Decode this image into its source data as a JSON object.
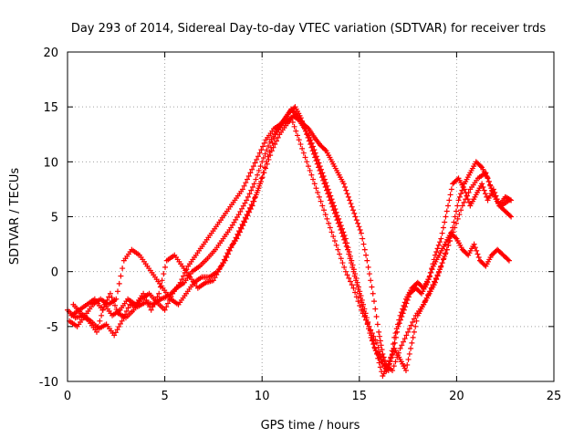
{
  "chart_data": {
    "type": "scatter",
    "title": "Day 293 of 2014, Sidereal Day-to-day VTEC variation (SDTVAR) for receiver trds",
    "xlabel": "GPS time / hours",
    "ylabel": "SDTVAR / TECUs",
    "xlim": [
      0,
      25
    ],
    "ylim": [
      -10,
      20
    ],
    "xticks": [
      0,
      5,
      10,
      15,
      20,
      25
    ],
    "yticks": [
      -10,
      -5,
      0,
      5,
      10,
      15,
      20
    ],
    "grid": true,
    "marker": "plus",
    "series_color": "#ff0000",
    "series": [
      {
        "name": "trace-1",
        "x": [
          0.0,
          0.4,
          0.8,
          1.2,
          1.6,
          2.0,
          2.4,
          2.8,
          3.2,
          3.6,
          4.0,
          4.4,
          4.8,
          5.2,
          5.6,
          6.0,
          6.4,
          6.8,
          7.2,
          7.6,
          8.0,
          8.4,
          8.8,
          9.2,
          9.6,
          10.0,
          10.4,
          10.8,
          11.2,
          11.5,
          11.8,
          12.1,
          12.4,
          12.7,
          13.0,
          13.3,
          13.6,
          13.9,
          14.2,
          14.5,
          14.8,
          15.1,
          15.4,
          15.7,
          16.0,
          16.2,
          16.5,
          16.8,
          17.1,
          17.4,
          17.7,
          18.0,
          18.3,
          18.6,
          18.9,
          19.2,
          19.5,
          19.8,
          20.1,
          20.4,
          20.7,
          21.0,
          21.3,
          21.6,
          21.9,
          22.2,
          22.5,
          22.8
        ],
        "y": [
          -3.5,
          -4.2,
          -4.0,
          -4.5,
          -5.2,
          -4.8,
          -5.8,
          -4.5,
          -3.0,
          -3.2,
          -2.8,
          -3.0,
          -2.5,
          -2.2,
          -1.5,
          -1.0,
          0.0,
          0.5,
          1.2,
          2.0,
          3.0,
          4.0,
          5.2,
          6.5,
          8.0,
          10.0,
          11.8,
          13.0,
          14.0,
          14.8,
          14.2,
          13.5,
          13.0,
          12.2,
          11.5,
          11.0,
          10.0,
          9.0,
          8.0,
          6.5,
          5.0,
          3.5,
          1.0,
          -2.0,
          -5.5,
          -7.5,
          -9.0,
          -6.0,
          -4.0,
          -2.5,
          -1.5,
          -1.0,
          -1.5,
          -0.5,
          1.5,
          3.0,
          5.5,
          8.0,
          8.5,
          7.5,
          6.0,
          7.0,
          8.0,
          6.5,
          7.5,
          6.0,
          6.8,
          6.5
        ]
      },
      {
        "name": "trace-2",
        "x": [
          0.2,
          0.6,
          1.0,
          1.4,
          1.8,
          2.2,
          2.6,
          3.0,
          3.4,
          3.8,
          4.2,
          4.6,
          5.0,
          5.4,
          5.8,
          6.2,
          6.6,
          7.0,
          7.4,
          7.8,
          8.2,
          8.6,
          9.0,
          9.4,
          9.8,
          10.2,
          10.6,
          11.0,
          11.4,
          11.7,
          12.0,
          12.3,
          12.6,
          12.9,
          13.2,
          13.5,
          13.8,
          14.1,
          14.4,
          14.7,
          15.0,
          15.3,
          15.6,
          15.9,
          16.2,
          16.5,
          16.8,
          17.1,
          17.4,
          17.7,
          18.0,
          18.3,
          18.6,
          18.9,
          19.2,
          19.5,
          19.8,
          20.1,
          20.4,
          20.7,
          21.0,
          21.3,
          21.6,
          21.9,
          22.2,
          22.5,
          22.8
        ],
        "y": [
          -4.0,
          -3.5,
          -3.0,
          -2.5,
          -3.5,
          -2.0,
          -3.8,
          -4.2,
          -3.5,
          -2.5,
          -2.0,
          -2.8,
          -3.5,
          -2.0,
          -1.0,
          0.5,
          1.5,
          2.5,
          3.5,
          4.5,
          5.5,
          6.5,
          7.5,
          9.0,
          10.5,
          12.0,
          13.0,
          13.5,
          14.5,
          15.0,
          14.0,
          12.5,
          11.0,
          9.5,
          8.0,
          6.5,
          5.0,
          3.5,
          2.0,
          0.0,
          -2.0,
          -4.0,
          -6.0,
          -7.5,
          -9.5,
          -8.5,
          -7.0,
          -8.0,
          -9.0,
          -6.5,
          -4.0,
          -3.0,
          -2.0,
          -1.0,
          0.5,
          2.0,
          4.0,
          6.5,
          8.0,
          9.0,
          10.0,
          9.5,
          8.5,
          7.0,
          6.0,
          5.5,
          5.0
        ]
      },
      {
        "name": "trace-3",
        "x": [
          0.1,
          0.5,
          0.9,
          1.3,
          1.7,
          2.1,
          2.5,
          2.9,
          3.3,
          3.7,
          4.1,
          4.5,
          4.9,
          5.3,
          5.7,
          6.1,
          6.5,
          6.9,
          7.3,
          7.7,
          8.1,
          8.5,
          8.9,
          9.3,
          9.7,
          10.1,
          10.5,
          10.9,
          11.3,
          11.6,
          11.9,
          12.2,
          12.5,
          12.8,
          13.1,
          13.4,
          13.7,
          14.0,
          14.3,
          14.6,
          14.9,
          15.2,
          15.5,
          15.8,
          16.1,
          16.4,
          16.7,
          17.0,
          17.3,
          17.6,
          17.9,
          18.2,
          18.5,
          18.8,
          19.1,
          19.4,
          19.7,
          20.0,
          20.3,
          20.6,
          20.9,
          21.2,
          21.5,
          21.8,
          22.1,
          22.4,
          22.7
        ],
        "y": [
          -4.5,
          -5.0,
          -4.0,
          -3.0,
          -2.5,
          -3.0,
          -2.5,
          1.0,
          2.0,
          1.5,
          0.5,
          -0.5,
          -1.5,
          -2.5,
          -3.0,
          -2.0,
          -1.0,
          -0.5,
          -0.5,
          0.0,
          1.0,
          2.5,
          4.0,
          5.5,
          7.0,
          9.0,
          11.0,
          12.5,
          13.5,
          14.2,
          13.8,
          13.0,
          12.0,
          10.5,
          9.0,
          7.5,
          6.0,
          4.5,
          3.0,
          1.0,
          -1.0,
          -3.0,
          -5.0,
          -7.0,
          -8.0,
          -9.0,
          -7.5,
          -5.0,
          -3.5,
          -2.0,
          -1.5,
          -2.0,
          -1.0,
          0.5,
          1.5,
          2.5,
          3.5,
          3.0,
          2.0,
          1.5,
          2.5,
          1.0,
          0.5,
          1.5,
          2.0,
          1.5,
          1.0
        ]
      },
      {
        "name": "trace-4",
        "x": [
          0.3,
          0.7,
          1.1,
          1.5,
          1.9,
          2.3,
          2.7,
          3.1,
          3.5,
          3.9,
          4.3,
          4.7,
          5.1,
          5.5,
          5.9,
          6.3,
          6.7,
          7.1,
          7.5,
          7.9,
          8.3,
          8.7,
          9.1,
          9.5,
          9.9,
          10.3,
          10.7,
          11.1,
          11.5,
          11.9,
          12.3,
          12.7,
          13.1,
          13.5,
          13.9,
          14.3,
          14.7,
          15.1,
          15.5,
          15.9,
          16.3,
          16.7,
          17.1,
          17.5,
          17.9,
          18.3,
          18.7,
          19.1,
          19.5,
          19.9,
          20.3,
          20.7,
          21.1,
          21.5,
          21.9,
          22.3,
          22.7
        ],
        "y": [
          -3.0,
          -3.8,
          -4.5,
          -5.5,
          -3.0,
          -4.0,
          -3.5,
          -2.5,
          -3.0,
          -2.0,
          -3.5,
          -2.0,
          1.0,
          1.5,
          0.5,
          -0.5,
          -1.5,
          -1.0,
          -0.8,
          0.5,
          2.0,
          3.0,
          4.5,
          6.0,
          8.0,
          10.5,
          12.5,
          13.5,
          14.0,
          12.0,
          10.0,
          8.0,
          6.0,
          4.0,
          2.0,
          0.0,
          -1.5,
          -3.5,
          -5.0,
          -6.5,
          -8.5,
          -9.0,
          -7.0,
          -5.5,
          -4.0,
          -3.0,
          -1.5,
          0.0,
          2.0,
          4.0,
          6.0,
          7.5,
          8.5,
          9.0,
          7.0,
          6.0,
          6.5
        ]
      }
    ]
  }
}
